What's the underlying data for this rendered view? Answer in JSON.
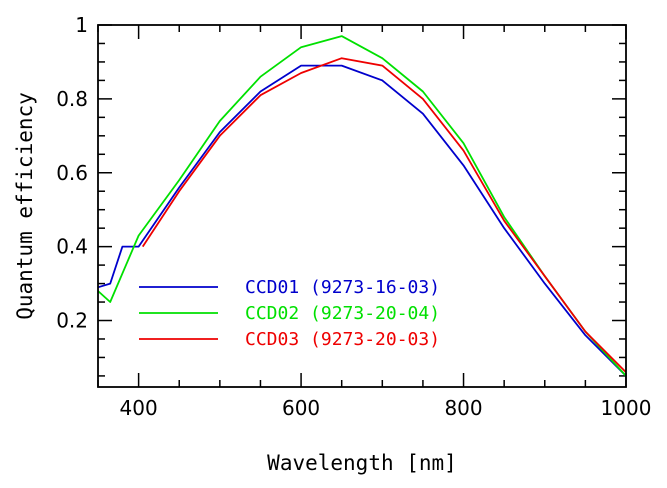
{
  "chart_data": {
    "type": "line",
    "title": "",
    "xlabel": "Wavelength [nm]",
    "ylabel": "Quantum efficiency",
    "xlim": [
      350,
      1000
    ],
    "ylim": [
      0.02,
      1.0
    ],
    "xticks_major": [
      400,
      600,
      800,
      1000
    ],
    "yticks_major": [
      0.2,
      0.4,
      0.6,
      0.8,
      1
    ],
    "ytick_labels": [
      "0.2",
      "0.4",
      "0.6",
      "0.8",
      "1"
    ],
    "grid": false,
    "legend_position": "lower-left",
    "series": [
      {
        "name": "CCD01 (9273-16-03)",
        "color": "#0000cc",
        "x": [
          350,
          365,
          380,
          400,
          450,
          500,
          550,
          600,
          650,
          700,
          750,
          800,
          850,
          900,
          950,
          1000
        ],
        "y": [
          0.29,
          0.3,
          0.4,
          0.4,
          0.56,
          0.71,
          0.82,
          0.89,
          0.89,
          0.85,
          0.76,
          0.62,
          0.45,
          0.3,
          0.16,
          0.05
        ]
      },
      {
        "name": "CCD02 (9273-20-04)",
        "color": "#00e000",
        "x": [
          350,
          365,
          400,
          450,
          500,
          550,
          600,
          650,
          700,
          750,
          800,
          850,
          900,
          950,
          1000
        ],
        "y": [
          0.28,
          0.25,
          0.43,
          0.58,
          0.74,
          0.86,
          0.94,
          0.97,
          0.91,
          0.82,
          0.68,
          0.48,
          0.32,
          0.17,
          0.05
        ]
      },
      {
        "name": "CCD03 (9273-20-03)",
        "color": "#ee0000",
        "x": [
          405,
          450,
          500,
          550,
          600,
          650,
          700,
          750,
          800,
          850,
          900,
          950,
          1000
        ],
        "y": [
          0.4,
          0.55,
          0.7,
          0.81,
          0.87,
          0.91,
          0.89,
          0.8,
          0.66,
          0.47,
          0.32,
          0.17,
          0.06
        ]
      }
    ]
  }
}
